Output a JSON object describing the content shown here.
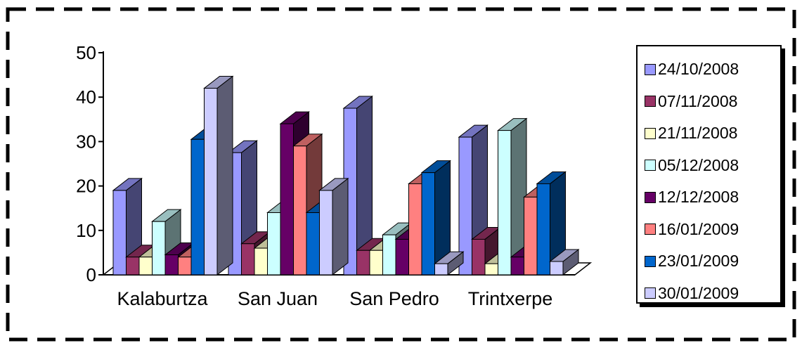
{
  "chart_data": {
    "type": "bar",
    "categories": [
      "Kalaburtza",
      "San Juan",
      "San Pedro",
      "Trintxerpe"
    ],
    "ylim": [
      0,
      50
    ],
    "yticks": [
      0,
      10,
      20,
      30,
      40,
      50
    ],
    "legend_position": "right",
    "grid": false,
    "three_d": true,
    "series": [
      {
        "name": "24/10/2008",
        "color": "#9999ff",
        "values": [
          19,
          27.5,
          37.5,
          31
        ]
      },
      {
        "name": "07/11/2008",
        "color": "#993366",
        "values": [
          4,
          7,
          5.5,
          8
        ]
      },
      {
        "name": "21/11/2008",
        "color": "#ffffcc",
        "values": [
          4,
          6,
          5.5,
          2.5
        ]
      },
      {
        "name": "05/12/2008",
        "color": "#ccffff",
        "values": [
          12,
          14,
          9,
          32.5
        ]
      },
      {
        "name": "12/12/2008",
        "color": "#660066",
        "values": [
          4.5,
          34,
          8,
          4
        ]
      },
      {
        "name": "16/01/2009",
        "color": "#ff8080",
        "values": [
          4,
          29,
          20.5,
          17.5
        ]
      },
      {
        "name": "23/01/2009",
        "color": "#0066cc",
        "values": [
          30.5,
          14,
          23,
          20.5
        ]
      },
      {
        "name": "30/01/2009",
        "color": "#ccccff",
        "values": [
          42,
          19,
          2.5,
          3
        ]
      }
    ]
  }
}
